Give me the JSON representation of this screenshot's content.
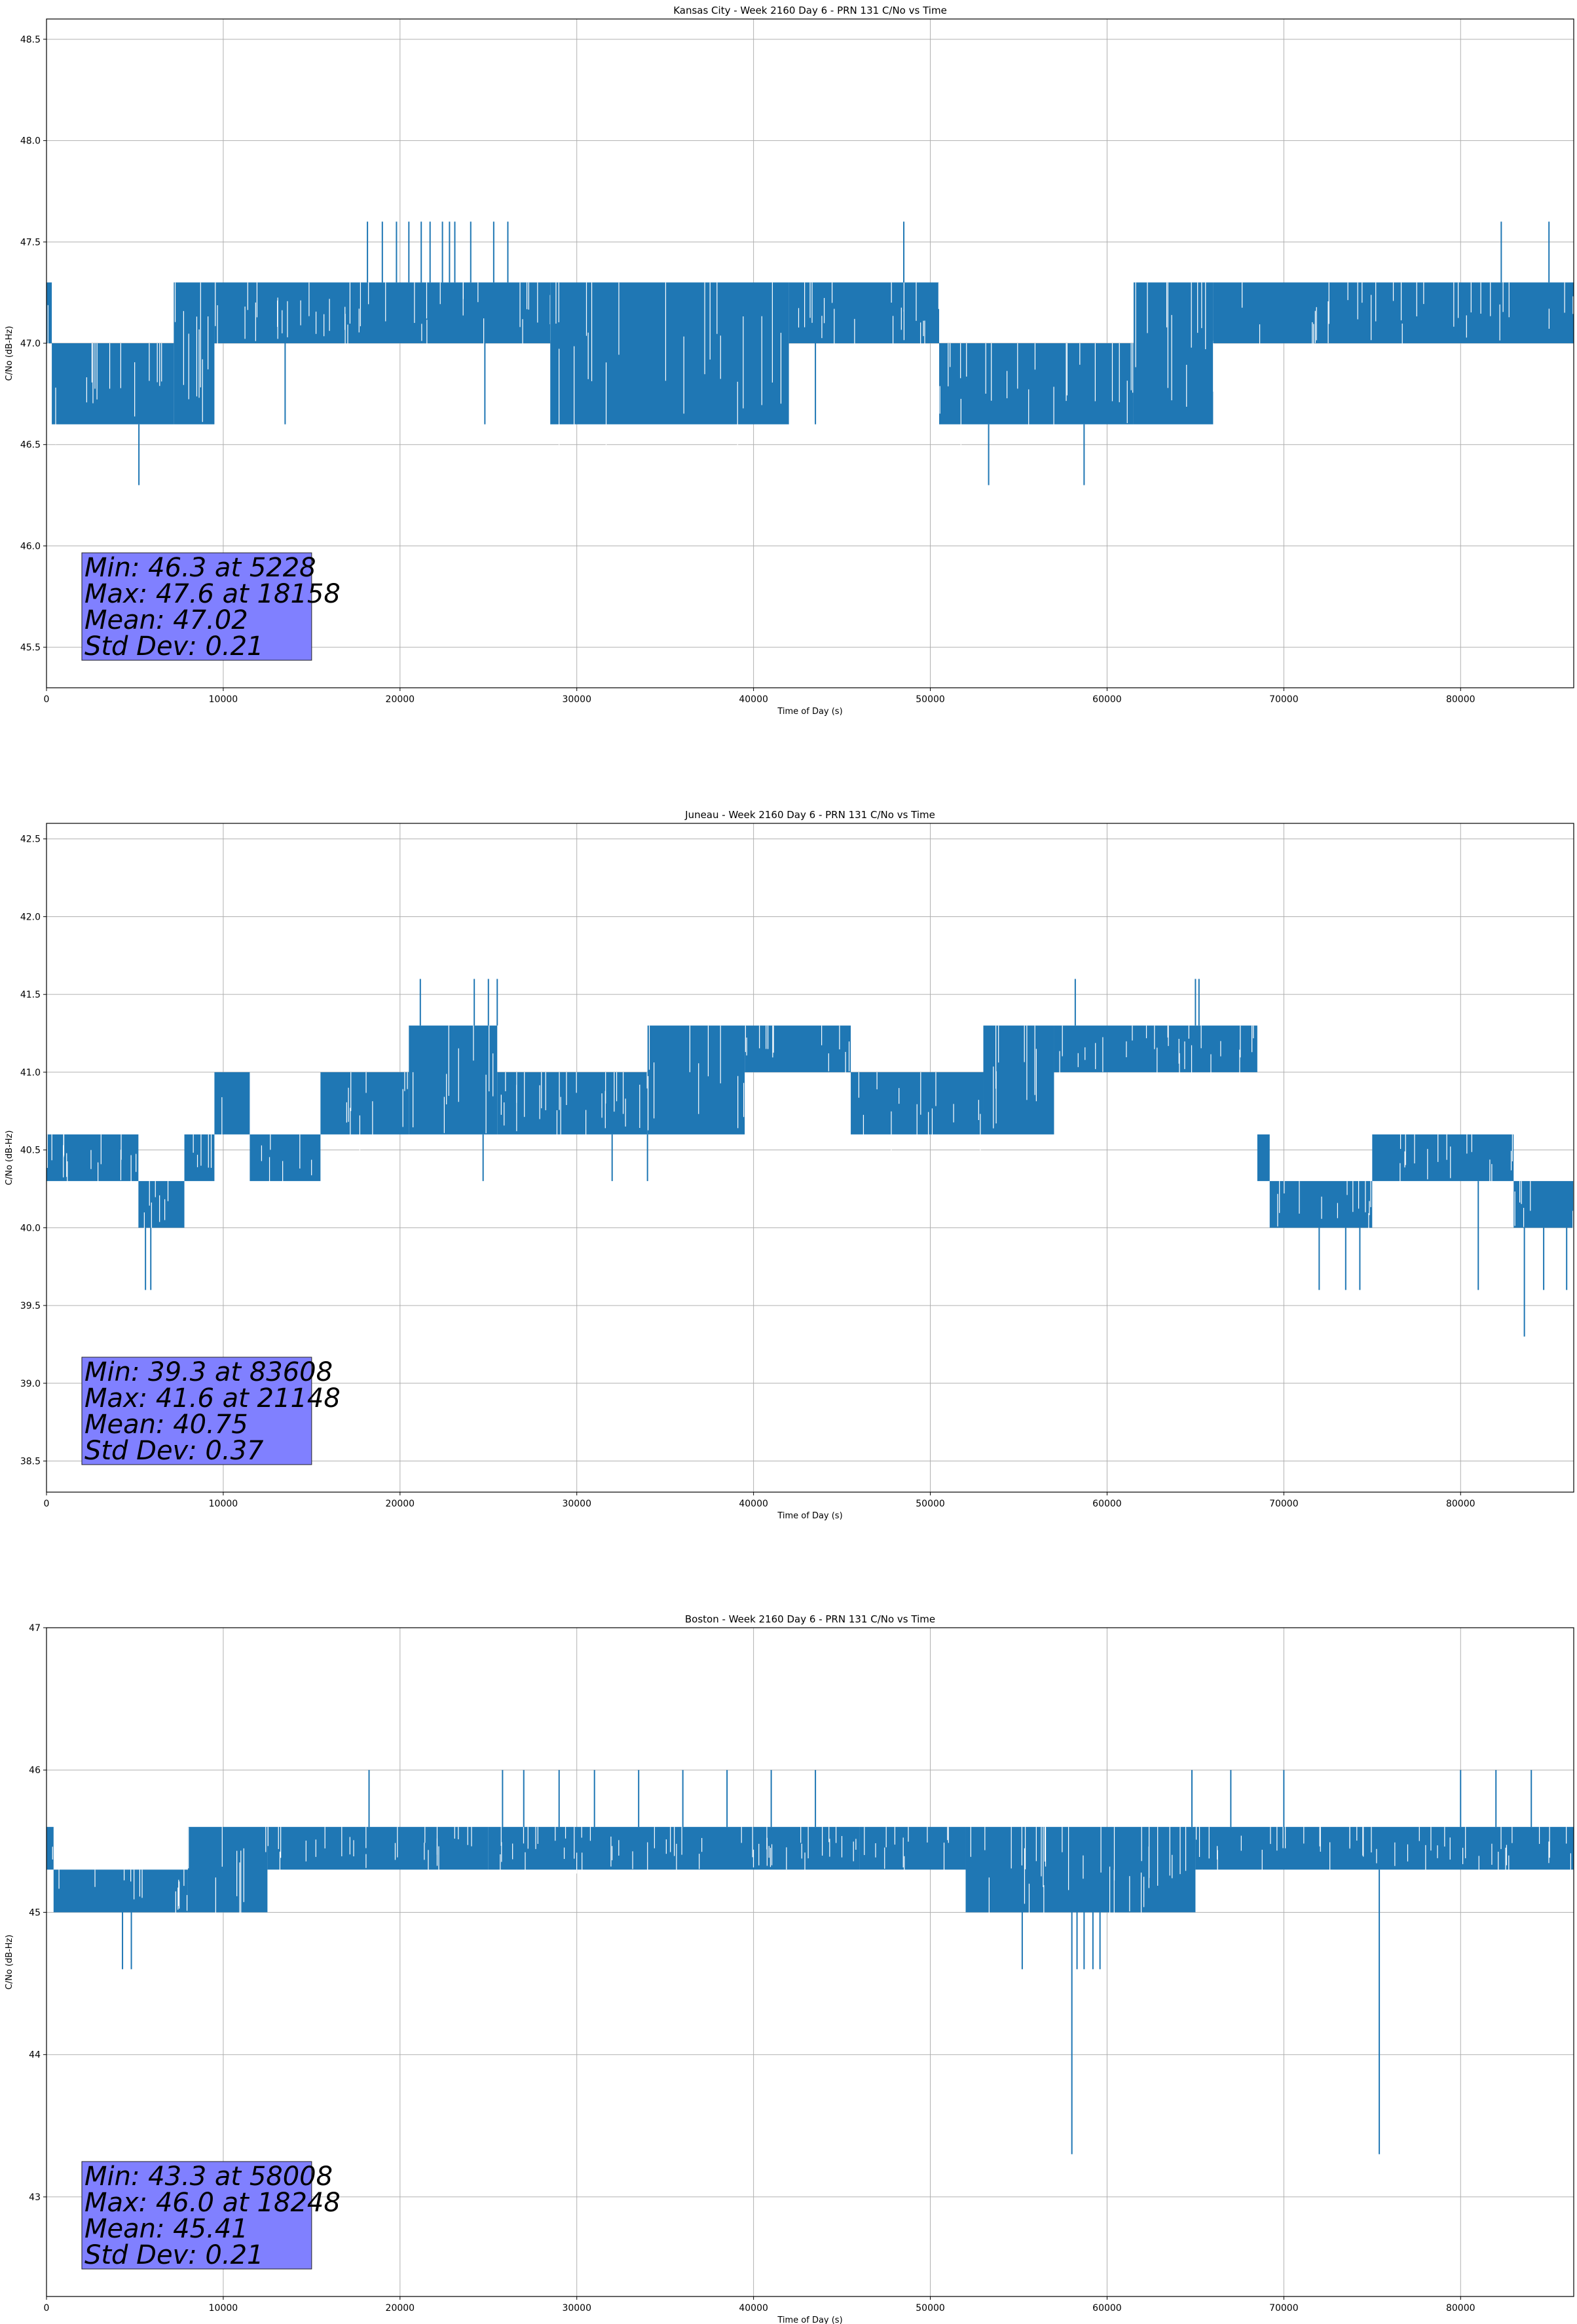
{
  "chart_data": [
    {
      "type": "line",
      "title": "Kansas City - Week 2160 Day 6 - PRN 131 C/No vs Time",
      "xlabel": "Time of Day (s)",
      "ylabel": "C/No (dB-Hz)",
      "xlim": [
        0,
        86400
      ],
      "ylim": [
        45.3,
        48.6
      ],
      "xticks": [
        0,
        10000,
        20000,
        30000,
        40000,
        50000,
        60000,
        70000,
        80000
      ],
      "yticks": [
        45.5,
        46.0,
        46.5,
        47.0,
        47.5,
        48.0,
        48.5
      ],
      "ytick_decimals": 1,
      "grid": true,
      "color": "#1f77b4",
      "segments": [
        {
          "x": [
            0,
            300
          ],
          "band": [
            47.0,
            47.3
          ]
        },
        {
          "x": [
            300,
            7200
          ],
          "band": [
            46.6,
            47.0
          ]
        },
        {
          "x": [
            7200,
            9500
          ],
          "band": [
            46.6,
            47.3
          ]
        },
        {
          "x": [
            9500,
            28500
          ],
          "band": [
            47.0,
            47.3
          ]
        },
        {
          "x": [
            28500,
            42000
          ],
          "band": [
            46.6,
            47.3
          ]
        },
        {
          "x": [
            42000,
            50500
          ],
          "band": [
            47.0,
            47.3
          ]
        },
        {
          "x": [
            50500,
            61500
          ],
          "band": [
            46.6,
            47.0
          ]
        },
        {
          "x": [
            61500,
            66000
          ],
          "band": [
            46.6,
            47.3
          ]
        },
        {
          "x": [
            66000,
            86400
          ],
          "band": [
            47.0,
            47.3
          ]
        }
      ],
      "spikes": [
        {
          "x": 5228,
          "y": 46.3
        },
        {
          "x": 53300,
          "y": 46.3
        },
        {
          "x": 58700,
          "y": 46.3
        },
        {
          "x": 13500,
          "y": 46.6
        },
        {
          "x": 24800,
          "y": 46.6
        },
        {
          "x": 43500,
          "y": 46.6
        },
        {
          "x": 18158,
          "y": 47.6
        },
        {
          "x": 19000,
          "y": 47.6
        },
        {
          "x": 19800,
          "y": 47.6
        },
        {
          "x": 20500,
          "y": 47.6
        },
        {
          "x": 21200,
          "y": 47.6
        },
        {
          "x": 21700,
          "y": 47.6
        },
        {
          "x": 22400,
          "y": 47.6
        },
        {
          "x": 22800,
          "y": 47.6
        },
        {
          "x": 23100,
          "y": 47.6
        },
        {
          "x": 24000,
          "y": 47.6
        },
        {
          "x": 25300,
          "y": 47.6
        },
        {
          "x": 26100,
          "y": 47.6
        },
        {
          "x": 48500,
          "y": 47.6
        },
        {
          "x": 82300,
          "y": 47.6
        },
        {
          "x": 85000,
          "y": 47.6
        }
      ],
      "stats": [
        "Min: 46.3 at 5228",
        "Max: 47.6 at 18158",
        "Mean: 47.02",
        "Std Dev: 0.21"
      ],
      "stats_box_color": "#8080ff"
    },
    {
      "type": "line",
      "title": "Juneau - Week 2160 Day 6 - PRN 131 C/No vs Time",
      "xlabel": "Time of Day (s)",
      "ylabel": "C/No (dB-Hz)",
      "xlim": [
        0,
        86400
      ],
      "ylim": [
        38.3,
        42.6
      ],
      "xticks": [
        0,
        10000,
        20000,
        30000,
        40000,
        50000,
        60000,
        70000,
        80000
      ],
      "yticks": [
        38.5,
        39.0,
        39.5,
        40.0,
        40.5,
        41.0,
        41.5,
        42.0,
        42.5
      ],
      "ytick_decimals": 1,
      "grid": true,
      "color": "#1f77b4",
      "segments": [
        {
          "x": [
            0,
            5200
          ],
          "band": [
            40.3,
            40.6
          ]
        },
        {
          "x": [
            5200,
            7800
          ],
          "band": [
            40.0,
            40.3
          ]
        },
        {
          "x": [
            7800,
            9500
          ],
          "band": [
            40.3,
            40.6
          ]
        },
        {
          "x": [
            9500,
            11500
          ],
          "band": [
            40.6,
            41.0
          ]
        },
        {
          "x": [
            11500,
            15500
          ],
          "band": [
            40.3,
            40.6
          ]
        },
        {
          "x": [
            15500,
            20500
          ],
          "band": [
            40.6,
            41.0
          ]
        },
        {
          "x": [
            20500,
            25500
          ],
          "band": [
            40.6,
            41.3
          ]
        },
        {
          "x": [
            25500,
            34000
          ],
          "band": [
            40.6,
            41.0
          ]
        },
        {
          "x": [
            34000,
            39500
          ],
          "band": [
            40.6,
            41.3
          ]
        },
        {
          "x": [
            39500,
            45500
          ],
          "band": [
            41.0,
            41.3
          ]
        },
        {
          "x": [
            45500,
            53000
          ],
          "band": [
            40.6,
            41.0
          ]
        },
        {
          "x": [
            53000,
            57000
          ],
          "band": [
            40.6,
            41.3
          ]
        },
        {
          "x": [
            57000,
            68500
          ],
          "band": [
            41.0,
            41.3
          ]
        },
        {
          "x": [
            68500,
            69200
          ],
          "band": [
            40.3,
            40.6
          ]
        },
        {
          "x": [
            69200,
            75000
          ],
          "band": [
            40.0,
            40.3
          ]
        },
        {
          "x": [
            75000,
            83000
          ],
          "band": [
            40.3,
            40.6
          ]
        },
        {
          "x": [
            83000,
            86400
          ],
          "band": [
            40.0,
            40.3
          ]
        }
      ],
      "spikes": [
        {
          "x": 83608,
          "y": 39.3
        },
        {
          "x": 5600,
          "y": 39.6
        },
        {
          "x": 5900,
          "y": 39.6
        },
        {
          "x": 72000,
          "y": 39.6
        },
        {
          "x": 73500,
          "y": 39.6
        },
        {
          "x": 74300,
          "y": 39.6
        },
        {
          "x": 81000,
          "y": 39.6
        },
        {
          "x": 84700,
          "y": 39.6
        },
        {
          "x": 86000,
          "y": 39.6
        },
        {
          "x": 24700,
          "y": 40.3
        },
        {
          "x": 32000,
          "y": 40.3
        },
        {
          "x": 34000,
          "y": 40.3
        },
        {
          "x": 21148,
          "y": 41.6
        },
        {
          "x": 24200,
          "y": 41.6
        },
        {
          "x": 25000,
          "y": 41.6
        },
        {
          "x": 25500,
          "y": 41.6
        },
        {
          "x": 58200,
          "y": 41.6
        },
        {
          "x": 65000,
          "y": 41.6
        },
        {
          "x": 65200,
          "y": 41.6
        }
      ],
      "stats": [
        "Min: 39.3 at 83608",
        "Max: 41.6 at 21148",
        "Mean: 40.75",
        "Std Dev: 0.37"
      ],
      "stats_box_color": "#8080ff"
    },
    {
      "type": "line",
      "title": "Boston - Week 2160 Day 6 - PRN 131 C/No vs Time",
      "xlabel": "Time of Day (s)",
      "ylabel": "C/No (dB-Hz)",
      "xlim": [
        0,
        86400
      ],
      "ylim": [
        42.3,
        47.0
      ],
      "xticks": [
        0,
        10000,
        20000,
        30000,
        40000,
        50000,
        60000,
        70000,
        80000
      ],
      "yticks": [
        43,
        44,
        45,
        46,
        47
      ],
      "ytick_decimals": 0,
      "grid": true,
      "color": "#1f77b4",
      "segments": [
        {
          "x": [
            0,
            400
          ],
          "band": [
            45.3,
            45.6
          ]
        },
        {
          "x": [
            400,
            8000
          ],
          "band": [
            45.0,
            45.3
          ]
        },
        {
          "x": [
            8000,
            12500
          ],
          "band": [
            45.0,
            45.6
          ]
        },
        {
          "x": [
            12500,
            25000
          ],
          "band": [
            45.3,
            45.6
          ]
        },
        {
          "x": [
            25000,
            46000
          ],
          "band": [
            45.3,
            45.6
          ]
        },
        {
          "x": [
            46000,
            52000
          ],
          "band": [
            45.3,
            45.6
          ]
        },
        {
          "x": [
            52000,
            65000
          ],
          "band": [
            45.0,
            45.6
          ]
        },
        {
          "x": [
            65000,
            86400
          ],
          "band": [
            45.3,
            45.6
          ]
        }
      ],
      "spikes": [
        {
          "x": 58008,
          "y": 43.3
        },
        {
          "x": 75400,
          "y": 43.3
        },
        {
          "x": 4300,
          "y": 44.6
        },
        {
          "x": 4800,
          "y": 44.6
        },
        {
          "x": 55200,
          "y": 44.6
        },
        {
          "x": 58300,
          "y": 44.6
        },
        {
          "x": 58700,
          "y": 44.6
        },
        {
          "x": 59200,
          "y": 44.6
        },
        {
          "x": 59600,
          "y": 44.6
        },
        {
          "x": 18248,
          "y": 46.0
        },
        {
          "x": 25800,
          "y": 46.0
        },
        {
          "x": 27000,
          "y": 46.0
        },
        {
          "x": 29000,
          "y": 46.0
        },
        {
          "x": 31000,
          "y": 46.0
        },
        {
          "x": 33500,
          "y": 46.0
        },
        {
          "x": 36000,
          "y": 46.0
        },
        {
          "x": 38500,
          "y": 46.0
        },
        {
          "x": 41000,
          "y": 46.0
        },
        {
          "x": 43500,
          "y": 46.0
        },
        {
          "x": 64800,
          "y": 46.0
        },
        {
          "x": 67000,
          "y": 46.0
        },
        {
          "x": 70000,
          "y": 46.0
        },
        {
          "x": 80000,
          "y": 46.0
        },
        {
          "x": 82000,
          "y": 46.0
        },
        {
          "x": 84000,
          "y": 46.0
        }
      ],
      "stats": [
        "Min: 43.3 at 58008",
        "Max: 46.0 at 18248",
        "Mean: 45.41",
        "Std Dev: 0.21"
      ],
      "stats_box_color": "#8080ff"
    }
  ]
}
